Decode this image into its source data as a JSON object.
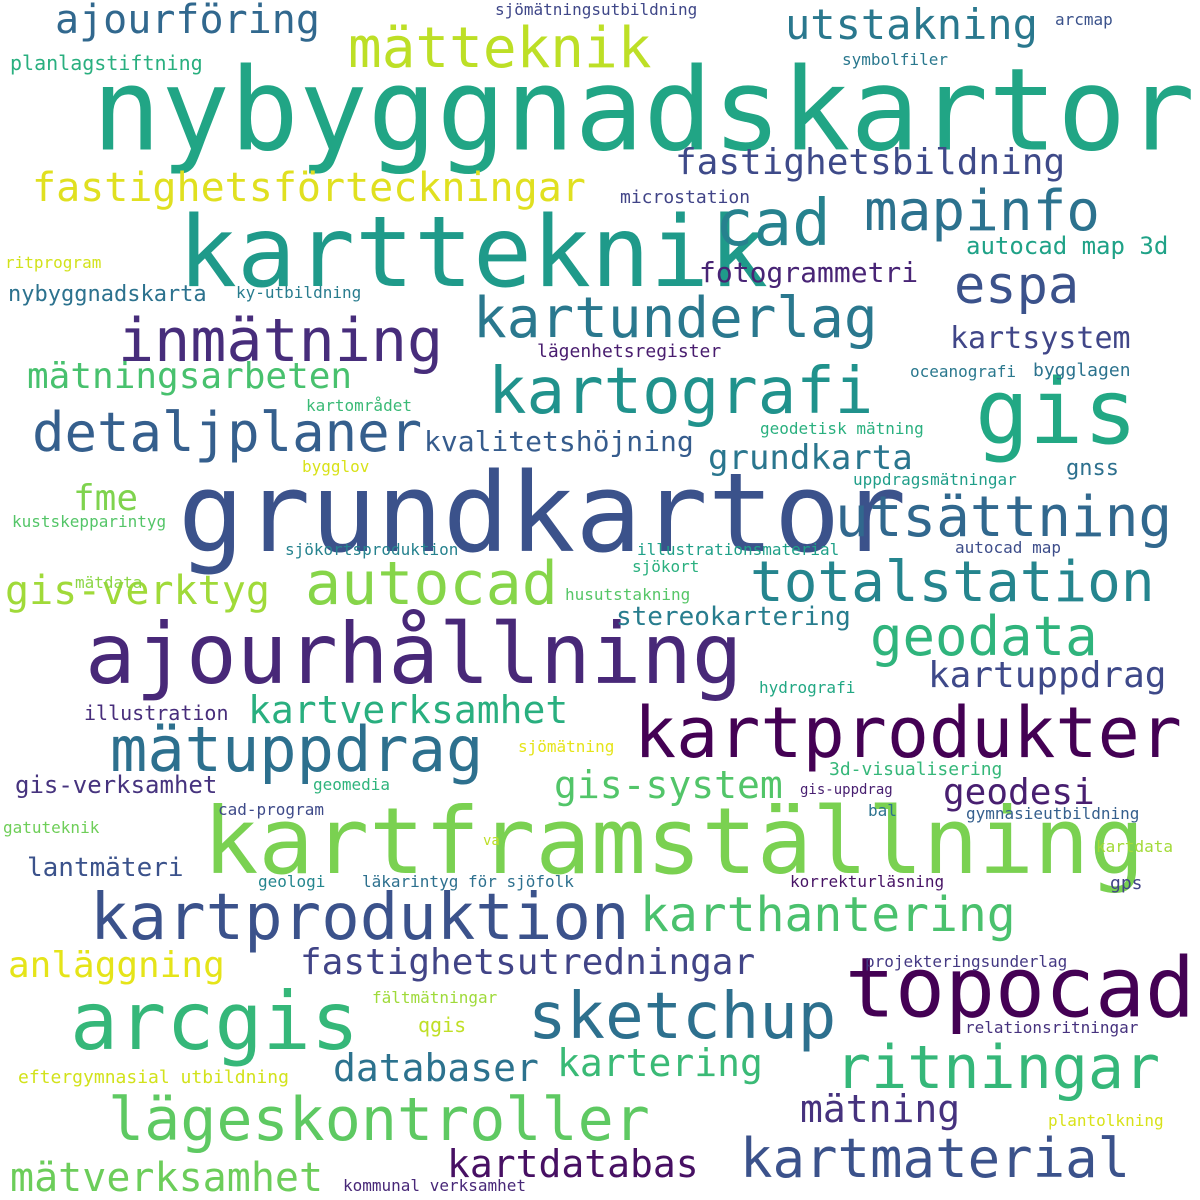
{
  "words": [
    {
      "text": "nybyggnadskartor",
      "color": "#21a585"
    },
    {
      "text": "kartteknik",
      "color": "#1f9a8a"
    },
    {
      "text": "grundkartor",
      "color": "#3b528b"
    },
    {
      "text": "ajourhållning",
      "color": "#482878"
    },
    {
      "text": "kartframställning",
      "color": "#7ad151"
    },
    {
      "text": "kartprodukter",
      "color": "#440154"
    },
    {
      "text": "kartproduktion",
      "color": "#3b528b"
    },
    {
      "text": "topocad",
      "color": "#440154"
    },
    {
      "text": "arcgis",
      "color": "#35b779"
    },
    {
      "text": "gis",
      "color": "#22a884"
    },
    {
      "text": "mätteknik",
      "color": "#bddf26"
    },
    {
      "text": "ajourföring",
      "color": "#31688e"
    },
    {
      "text": "utstakning",
      "color": "#2a788e"
    },
    {
      "text": "cad",
      "color": "#26828e"
    },
    {
      "text": "mapinfo",
      "color": "#2c728e"
    },
    {
      "text": "fastighetsbildning",
      "color": "#3e4a89"
    },
    {
      "text": "fastighetsförteckningar",
      "color": "#e0e020"
    },
    {
      "text": "espa",
      "color": "#3b528b"
    },
    {
      "text": "kartunderlag",
      "color": "#2a788e"
    },
    {
      "text": "inmätning",
      "color": "#472d7b"
    },
    {
      "text": "kartografi",
      "color": "#20928c"
    },
    {
      "text": "detaljplaner",
      "color": "#355f8d"
    },
    {
      "text": "utsättning",
      "color": "#31688e"
    },
    {
      "text": "autocad",
      "color": "#86d549"
    },
    {
      "text": "totalstation",
      "color": "#25858e"
    },
    {
      "text": "geodata",
      "color": "#2fb47c"
    },
    {
      "text": "mätuppdrag",
      "color": "#2d708e"
    },
    {
      "text": "sketchup",
      "color": "#2d708e"
    },
    {
      "text": "ritningar",
      "color": "#35b779"
    },
    {
      "text": "lägeskontroller",
      "color": "#5ec962"
    },
    {
      "text": "kartmaterial",
      "color": "#3b528b"
    },
    {
      "text": "karthantering",
      "color": "#4ac16d"
    },
    {
      "text": "fastighetsutredningar",
      "color": "#414487"
    },
    {
      "text": "kartdatabas",
      "color": "#471063"
    },
    {
      "text": "mätverksamhet",
      "color": "#6ccd5a"
    },
    {
      "text": "databaser",
      "color": "#2c728e"
    },
    {
      "text": "kartering",
      "color": "#3aba76"
    },
    {
      "text": "mätning",
      "color": "#46327e"
    },
    {
      "text": "anläggning",
      "color": "#e5e419"
    },
    {
      "text": "gis-verktyg",
      "color": "#a0da39"
    },
    {
      "text": "gis-system",
      "color": "#52c569"
    },
    {
      "text": "kartverksamhet",
      "color": "#29af7f"
    },
    {
      "text": "kartuppdrag",
      "color": "#3e4989"
    },
    {
      "text": "geodesi",
      "color": "#481f70"
    },
    {
      "text": "stereokartering",
      "color": "#287d8e"
    },
    {
      "text": "grundkarta",
      "color": "#2a768e"
    },
    {
      "text": "kvalitetshöjning",
      "color": "#365c8d"
    },
    {
      "text": "mätningsarbeten",
      "color": "#48c16e"
    },
    {
      "text": "kartsystem",
      "color": "#404688"
    },
    {
      "text": "fme",
      "color": "#7fd34e"
    },
    {
      "text": "fotogrammetri",
      "color": "#482475"
    },
    {
      "text": "autocad map 3d",
      "color": "#1fa287"
    },
    {
      "text": "nybyggnadskarta",
      "color": "#2c728e"
    },
    {
      "text": "lantmäteri",
      "color": "#3b528b"
    },
    {
      "text": "gis-verksamhet",
      "color": "#46337e"
    },
    {
      "text": "illustration",
      "color": "#472d7b"
    },
    {
      "text": "planlagstiftning",
      "color": "#29af7f"
    },
    {
      "text": "sjömätningsutbildning",
      "color": "#3f4788"
    },
    {
      "text": "arcmap",
      "color": "#3b528b"
    },
    {
      "text": "symbolfiler",
      "color": "#2a788e"
    },
    {
      "text": "microstation",
      "color": "#414487"
    },
    {
      "text": "ritprogram",
      "color": "#d2e21b"
    },
    {
      "text": "ky-utbildning",
      "color": "#287c8e"
    },
    {
      "text": "lägenhetsregister",
      "color": "#481c6e"
    },
    {
      "text": "oceanografi",
      "color": "#2a788e"
    },
    {
      "text": "bygglagen",
      "color": "#2c738e"
    },
    {
      "text": "kartområdet",
      "color": "#3aba76"
    },
    {
      "text": "geodetisk mätning",
      "color": "#2ab07f"
    },
    {
      "text": "gnss",
      "color": "#2d708e"
    },
    {
      "text": "bygglov",
      "color": "#d8e219"
    },
    {
      "text": "uppdragsmätningar",
      "color": "#1f9e89"
    },
    {
      "text": "kustskepparintyg",
      "color": "#54c568"
    },
    {
      "text": "sjökortsproduktion",
      "color": "#26828e"
    },
    {
      "text": "illustrationsmaterial",
      "color": "#1fa088"
    },
    {
      "text": "autocad map",
      "color": "#3d4d8a"
    },
    {
      "text": "sjökort",
      "color": "#2ab07f"
    },
    {
      "text": "mätdata",
      "color": "#8bd646"
    },
    {
      "text": "husutstakning",
      "color": "#56c667"
    },
    {
      "text": "hydrografi",
      "color": "#22a884"
    },
    {
      "text": "sjömätning",
      "color": "#e5e419"
    },
    {
      "text": "3d-visualisering",
      "color": "#35b779"
    },
    {
      "text": "geomedia",
      "color": "#2fb47c"
    },
    {
      "text": "gis-uppdrag",
      "color": "#481f70"
    },
    {
      "text": "cad-program",
      "color": "#3e4a89"
    },
    {
      "text": "bal",
      "color": "#2c728e"
    },
    {
      "text": "gymnasieutbildning",
      "color": "#355f8d"
    },
    {
      "text": "gatuteknik",
      "color": "#6ece58"
    },
    {
      "text": "va",
      "color": "#bddf26"
    },
    {
      "text": "kartdata",
      "color": "#a2da37"
    },
    {
      "text": "geologi",
      "color": "#24868e"
    },
    {
      "text": "läkarintyg för sjöfolk",
      "color": "#2d708e"
    },
    {
      "text": "korrekturläsning",
      "color": "#471365"
    },
    {
      "text": "gps",
      "color": "#414487"
    },
    {
      "text": "projekteringsunderlag",
      "color": "#443983"
    },
    {
      "text": "fältmätningar",
      "color": "#9fda3a"
    },
    {
      "text": "qgis",
      "color": "#c0df25"
    },
    {
      "text": "relationsritningar",
      "color": "#46327e"
    },
    {
      "text": "eftergymnasial utbildning",
      "color": "#d2e21b"
    },
    {
      "text": "plantolkning",
      "color": "#d8e219"
    },
    {
      "text": "kommunal verksamhet",
      "color": "#482878"
    }
  ]
}
